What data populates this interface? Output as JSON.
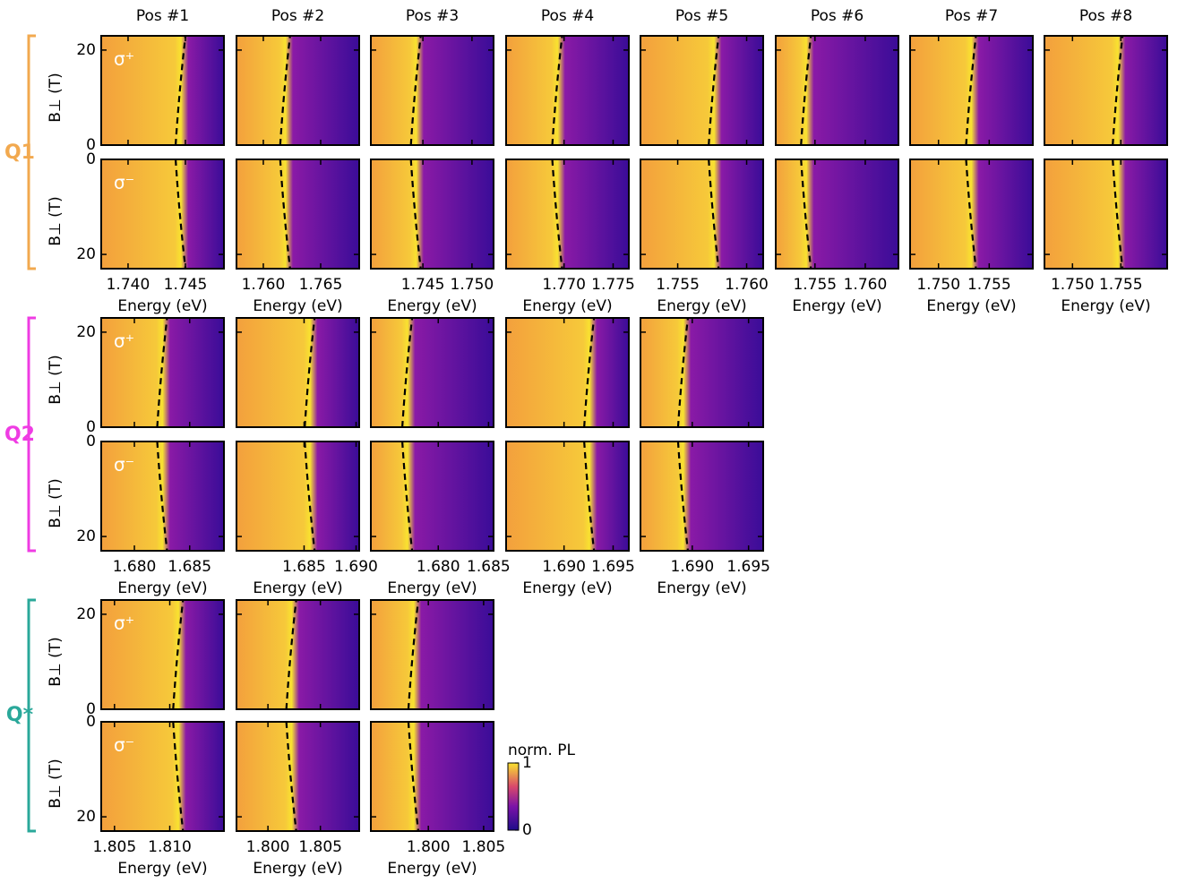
{
  "column_titles": [
    "Pos #1",
    "Pos #2",
    "Pos #3",
    "Pos #4",
    "Pos #5",
    "Pos #6",
    "Pos #7",
    "Pos #8"
  ],
  "sigma_labels": [
    "σ⁺",
    "σ⁻"
  ],
  "ylabel": "B⊥ (T)",
  "ylim": [
    0,
    23
  ],
  "yticks": [
    0,
    20
  ],
  "xlabel": "Energy (eV)",
  "groups": [
    {
      "label": "Q1",
      "color": "#f2a94f",
      "panels": [
        {
          "xlim": [
            1.73766,
            1.74836
          ],
          "xticks": [
            {
              "value": 1.74,
              "label": "1.740"
            },
            {
              "value": 1.745,
              "label": "1.745"
            }
          ]
        },
        {
          "xlim": [
            1.75766,
            1.76836
          ],
          "xticks": [
            {
              "value": 1.76,
              "label": "1.760"
            },
            {
              "value": 1.765,
              "label": "1.765"
            }
          ]
        },
        {
          "xlim": [
            1.7397,
            1.7522
          ],
          "xticks": [
            {
              "value": 1.745,
              "label": "1.745"
            },
            {
              "value": 1.75,
              "label": "1.750"
            }
          ]
        },
        {
          "xlim": [
            1.7641,
            1.7766
          ],
          "xticks": [
            {
              "value": 1.77,
              "label": "1.770"
            },
            {
              "value": 1.775,
              "label": "1.775"
            }
          ]
        },
        {
          "xlim": [
            1.7523,
            1.7612
          ],
          "xticks": [
            {
              "value": 1.755,
              "label": "1.755"
            },
            {
              "value": 1.76,
              "label": "1.760"
            }
          ]
        },
        {
          "xlim": [
            1.7511,
            1.7633
          ],
          "xticks": [
            {
              "value": 1.755,
              "label": "1.755"
            },
            {
              "value": 1.76,
              "label": "1.760"
            }
          ]
        },
        {
          "xlim": [
            1.7472,
            1.7593
          ],
          "xticks": [
            {
              "value": 1.75,
              "label": "1.750"
            },
            {
              "value": 1.755,
              "label": "1.755"
            }
          ]
        },
        {
          "xlim": [
            1.7471,
            1.7598
          ],
          "xticks": [
            {
              "value": 1.75,
              "label": "1.750"
            },
            {
              "value": 1.755,
              "label": "1.755"
            }
          ]
        }
      ]
    },
    {
      "label": "Q2",
      "color": "#ef3ce3",
      "panels": [
        {
          "xlim": [
            1.677,
            1.6881
          ],
          "xticks": [
            {
              "value": 1.68,
              "label": "1.680"
            },
            {
              "value": 1.685,
              "label": "1.685"
            }
          ]
        },
        {
          "xlim": [
            1.6785,
            1.6903
          ],
          "xticks": [
            {
              "value": 1.685,
              "label": "1.685"
            },
            {
              "value": 1.69,
              "label": "1.690"
            }
          ]
        },
        {
          "xlim": [
            1.6733,
            1.6855
          ],
          "xticks": [
            {
              "value": 1.68,
              "label": "1.680"
            },
            {
              "value": 1.685,
              "label": "1.685"
            }
          ]
        },
        {
          "xlim": [
            1.6841,
            1.6966
          ],
          "xticks": [
            {
              "value": 1.69,
              "label": "1.690"
            },
            {
              "value": 1.695,
              "label": "1.695"
            }
          ]
        },
        {
          "xlim": [
            1.6854,
            1.6963
          ],
          "xticks": [
            {
              "value": 1.69,
              "label": "1.690"
            },
            {
              "value": 1.695,
              "label": "1.695"
            }
          ]
        }
      ]
    },
    {
      "label": "Q*",
      "color": "#2aa89a",
      "panels": [
        {
          "xlim": [
            1.8038,
            1.8149
          ],
          "xticks": [
            {
              "value": 1.805,
              "label": "1.805"
            },
            {
              "value": 1.81,
              "label": "1.810"
            }
          ]
        },
        {
          "xlim": [
            1.797,
            1.8087
          ],
          "xticks": [
            {
              "value": 1.8,
              "label": "1.800"
            },
            {
              "value": 1.805,
              "label": "1.805"
            }
          ]
        },
        {
          "xlim": [
            1.7948,
            1.8059
          ],
          "xticks": [
            {
              "value": 1.8,
              "label": "1.800"
            },
            {
              "value": 1.805,
              "label": "1.805"
            }
          ]
        }
      ]
    }
  ],
  "colorbar": {
    "label": "norm. PL",
    "ticks": [
      0,
      1
    ]
  }
}
